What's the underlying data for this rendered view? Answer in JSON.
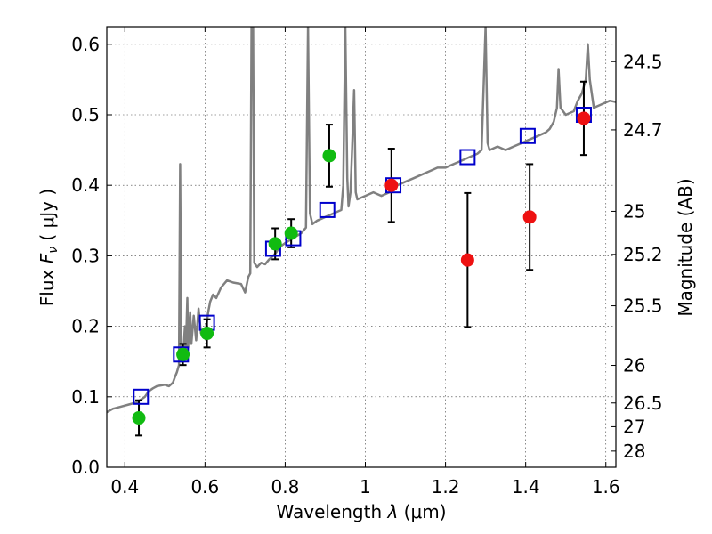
{
  "chart_data": {
    "type": "scatter",
    "xlabel": "Wavelength  λ (μm)",
    "ylabel": "Flux  F_ν  ( μJy )",
    "ylabel_parts": {
      "prefix": "Flux  ",
      "var": "F",
      "sub": "ν",
      "unit": "  ( μJy )"
    },
    "xlabel_parts": {
      "prefix": "Wavelength  ",
      "var": "λ",
      "unit": " (μm)"
    },
    "y2label": "Magnitude (AB)",
    "xlim": [
      0.355,
      1.625
    ],
    "ylim": [
      0.0,
      0.625
    ],
    "grid": true,
    "xticks": [
      {
        "v": 0.4,
        "label": "0.4"
      },
      {
        "v": 0.6,
        "label": "0.6"
      },
      {
        "v": 0.8,
        "label": "0.8"
      },
      {
        "v": 1.0,
        "label": "1"
      },
      {
        "v": 1.2,
        "label": "1.2"
      },
      {
        "v": 1.4,
        "label": "1.4"
      },
      {
        "v": 1.6,
        "label": "1.6"
      }
    ],
    "yticks": [
      {
        "v": 0.0,
        "label": "0.0"
      },
      {
        "v": 0.1,
        "label": "0.1"
      },
      {
        "v": 0.2,
        "label": "0.2"
      },
      {
        "v": 0.3,
        "label": "0.3"
      },
      {
        "v": 0.4,
        "label": "0.4"
      },
      {
        "v": 0.5,
        "label": "0.5"
      },
      {
        "v": 0.6,
        "label": "0.6"
      }
    ],
    "mag_ticks": [
      {
        "mag": 24.5,
        "label": "24.5"
      },
      {
        "mag": 24.7,
        "label": "24.7"
      },
      {
        "mag": 25.0,
        "label": "25"
      },
      {
        "mag": 25.2,
        "label": "25.2"
      },
      {
        "mag": 25.5,
        "label": "25.5"
      },
      {
        "mag": 26.0,
        "label": "26"
      },
      {
        "mag": 26.5,
        "label": "26.5"
      },
      {
        "mag": 27.0,
        "label": "27"
      },
      {
        "mag": 28.0,
        "label": "28"
      }
    ],
    "colors": {
      "spectrum": "#808080",
      "green": "#11bb11",
      "red": "#ee1111",
      "model_box": "#0000cc",
      "errorbar": "#000000"
    },
    "spectrum": [
      [
        0.355,
        0.078
      ],
      [
        0.37,
        0.083
      ],
      [
        0.39,
        0.086
      ],
      [
        0.41,
        0.089
      ],
      [
        0.43,
        0.092
      ],
      [
        0.45,
        0.1
      ],
      [
        0.46,
        0.108
      ],
      [
        0.47,
        0.112
      ],
      [
        0.48,
        0.115
      ],
      [
        0.5,
        0.117
      ],
      [
        0.51,
        0.115
      ],
      [
        0.52,
        0.12
      ],
      [
        0.525,
        0.128
      ],
      [
        0.53,
        0.135
      ],
      [
        0.535,
        0.145
      ],
      [
        0.538,
        0.43
      ],
      [
        0.541,
        0.15
      ],
      [
        0.545,
        0.155
      ],
      [
        0.55,
        0.2
      ],
      [
        0.552,
        0.16
      ],
      [
        0.556,
        0.24
      ],
      [
        0.558,
        0.17
      ],
      [
        0.563,
        0.22
      ],
      [
        0.566,
        0.175
      ],
      [
        0.572,
        0.215
      ],
      [
        0.578,
        0.18
      ],
      [
        0.584,
        0.225
      ],
      [
        0.59,
        0.19
      ],
      [
        0.597,
        0.19
      ],
      [
        0.603,
        0.2
      ],
      [
        0.608,
        0.22
      ],
      [
        0.613,
        0.235
      ],
      [
        0.62,
        0.245
      ],
      [
        0.628,
        0.24
      ],
      [
        0.64,
        0.255
      ],
      [
        0.655,
        0.265
      ],
      [
        0.67,
        0.262
      ],
      [
        0.69,
        0.26
      ],
      [
        0.7,
        0.248
      ],
      [
        0.708,
        0.27
      ],
      [
        0.713,
        0.275
      ],
      [
        0.716,
        0.625
      ],
      [
        0.72,
        0.625
      ],
      [
        0.723,
        0.29
      ],
      [
        0.73,
        0.284
      ],
      [
        0.74,
        0.29
      ],
      [
        0.75,
        0.288
      ],
      [
        0.76,
        0.295
      ],
      [
        0.77,
        0.3
      ],
      [
        0.778,
        0.305
      ],
      [
        0.785,
        0.312
      ],
      [
        0.8,
        0.318
      ],
      [
        0.82,
        0.325
      ],
      [
        0.84,
        0.332
      ],
      [
        0.852,
        0.34
      ],
      [
        0.857,
        0.625
      ],
      [
        0.862,
        0.36
      ],
      [
        0.868,
        0.345
      ],
      [
        0.88,
        0.35
      ],
      [
        0.9,
        0.355
      ],
      [
        0.92,
        0.36
      ],
      [
        0.94,
        0.365
      ],
      [
        0.945,
        0.4
      ],
      [
        0.95,
        0.625
      ],
      [
        0.955,
        0.41
      ],
      [
        0.958,
        0.37
      ],
      [
        0.963,
        0.39
      ],
      [
        0.967,
        0.45
      ],
      [
        0.972,
        0.535
      ],
      [
        0.976,
        0.39
      ],
      [
        0.98,
        0.38
      ],
      [
        1.0,
        0.385
      ],
      [
        1.02,
        0.39
      ],
      [
        1.04,
        0.385
      ],
      [
        1.06,
        0.39
      ],
      [
        1.08,
        0.4
      ],
      [
        1.1,
        0.405
      ],
      [
        1.12,
        0.41
      ],
      [
        1.14,
        0.415
      ],
      [
        1.16,
        0.42
      ],
      [
        1.18,
        0.425
      ],
      [
        1.2,
        0.425
      ],
      [
        1.22,
        0.43
      ],
      [
        1.24,
        0.435
      ],
      [
        1.26,
        0.44
      ],
      [
        1.28,
        0.445
      ],
      [
        1.29,
        0.45
      ],
      [
        1.3,
        0.625
      ],
      [
        1.305,
        0.46
      ],
      [
        1.31,
        0.45
      ],
      [
        1.33,
        0.455
      ],
      [
        1.35,
        0.45
      ],
      [
        1.37,
        0.455
      ],
      [
        1.39,
        0.46
      ],
      [
        1.41,
        0.465
      ],
      [
        1.43,
        0.47
      ],
      [
        1.45,
        0.475
      ],
      [
        1.46,
        0.48
      ],
      [
        1.47,
        0.49
      ],
      [
        1.478,
        0.51
      ],
      [
        1.482,
        0.565
      ],
      [
        1.487,
        0.51
      ],
      [
        1.5,
        0.5
      ],
      [
        1.52,
        0.505
      ],
      [
        1.53,
        0.52
      ],
      [
        1.54,
        0.53
      ],
      [
        1.55,
        0.55
      ],
      [
        1.555,
        0.6
      ],
      [
        1.56,
        0.55
      ],
      [
        1.57,
        0.51
      ],
      [
        1.59,
        0.515
      ],
      [
        1.61,
        0.52
      ],
      [
        1.625,
        0.518
      ]
    ],
    "model_boxes": [
      {
        "x": 0.44,
        "y": 0.1
      },
      {
        "x": 0.54,
        "y": 0.16
      },
      {
        "x": 0.605,
        "y": 0.205
      },
      {
        "x": 0.77,
        "y": 0.31
      },
      {
        "x": 0.82,
        "y": 0.325
      },
      {
        "x": 0.905,
        "y": 0.365
      },
      {
        "x": 1.07,
        "y": 0.4
      },
      {
        "x": 1.255,
        "y": 0.44
      },
      {
        "x": 1.405,
        "y": 0.47
      },
      {
        "x": 1.545,
        "y": 0.5
      }
    ],
    "series": [
      {
        "name": "green",
        "points": [
          {
            "x": 0.435,
            "y": 0.07,
            "err": 0.025
          },
          {
            "x": 0.545,
            "y": 0.16,
            "err": 0.015
          },
          {
            "x": 0.605,
            "y": 0.19,
            "err": 0.02
          },
          {
            "x": 0.775,
            "y": 0.317,
            "err": 0.022
          },
          {
            "x": 0.815,
            "y": 0.332,
            "err": 0.02
          },
          {
            "x": 0.91,
            "y": 0.442,
            "err": 0.044
          }
        ]
      },
      {
        "name": "red",
        "points": [
          {
            "x": 1.065,
            "y": 0.4,
            "err": 0.052
          },
          {
            "x": 1.255,
            "y": 0.294,
            "err": 0.095
          },
          {
            "x": 1.41,
            "y": 0.355,
            "err": 0.075
          },
          {
            "x": 1.545,
            "y": 0.495,
            "err": 0.052
          }
        ]
      }
    ]
  }
}
